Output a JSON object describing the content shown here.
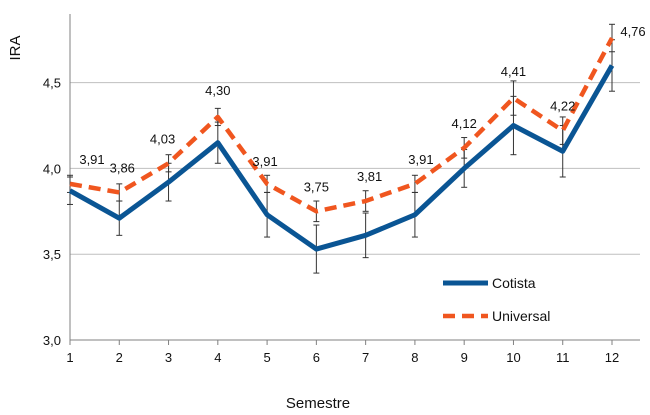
{
  "chart_data": {
    "type": "line",
    "xlabel": "Semestre",
    "ylabel": "IRA",
    "ylim": [
      3.0,
      4.9
    ],
    "yticks": [
      "3,0",
      "3,5",
      "4,0",
      "4,5"
    ],
    "ytick_values": [
      3.0,
      3.5,
      4.0,
      4.5
    ],
    "categories": [
      "1",
      "2",
      "3",
      "4",
      "5",
      "6",
      "7",
      "8",
      "9",
      "10",
      "11",
      "12"
    ],
    "grid": "horizontal",
    "legend_position": "bottom-right",
    "series": [
      {
        "name": "Cotista",
        "color": "#0a5594",
        "style": "solid",
        "values": [
          3.87,
          3.71,
          3.92,
          4.15,
          3.73,
          3.53,
          3.61,
          3.73,
          4.0,
          4.25,
          4.1,
          4.6
        ],
        "error": [
          0.08,
          0.1,
          0.11,
          0.12,
          0.13,
          0.14,
          0.13,
          0.13,
          0.11,
          0.17,
          0.15,
          0.15
        ]
      },
      {
        "name": "Universal",
        "color": "#f0561f",
        "style": "dashed",
        "values": [
          3.91,
          3.86,
          4.03,
          4.3,
          3.91,
          3.75,
          3.81,
          3.91,
          4.12,
          4.41,
          4.22,
          4.76
        ],
        "error": [
          0.05,
          0.05,
          0.05,
          0.05,
          0.05,
          0.06,
          0.06,
          0.05,
          0.06,
          0.1,
          0.08,
          0.08
        ],
        "data_labels": [
          "3,91",
          "3,86",
          "4,03",
          "4,30",
          "3,91",
          "3,75",
          "3,81",
          "3,91",
          "4,12",
          "4,41",
          "4,22",
          "4,76"
        ]
      }
    ]
  }
}
